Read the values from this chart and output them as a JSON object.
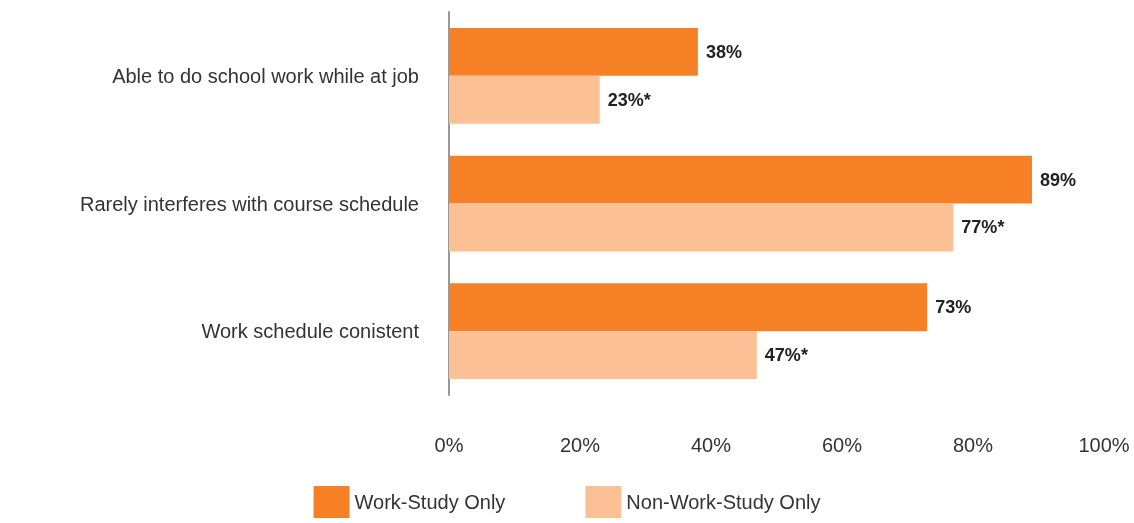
{
  "chart_data": {
    "type": "bar",
    "orientation": "horizontal",
    "categories": [
      "Able to do school work while at job",
      "Rarely interferes with course schedule",
      "Work schedule conistent"
    ],
    "series": [
      {
        "name": "Work-Study Only",
        "color": "#f58025",
        "values": [
          38,
          89,
          73
        ],
        "value_labels": [
          "38%",
          "89%",
          "73%"
        ]
      },
      {
        "name": "Non-Work-Study Only",
        "color": "#fbc195",
        "values": [
          23,
          77,
          47
        ],
        "value_labels": [
          "23%*",
          "77%*",
          "47%*"
        ]
      }
    ],
    "xlim": [
      0,
      100
    ],
    "xticks": [
      {
        "value": 0,
        "label": "0%"
      },
      {
        "value": 20,
        "label": "20%"
      },
      {
        "value": 40,
        "label": "40%"
      },
      {
        "value": 60,
        "label": "60%"
      },
      {
        "value": 80,
        "label": "80%"
      },
      {
        "value": 100,
        "label": "100%"
      }
    ],
    "grid": false,
    "legend": "bottom"
  }
}
